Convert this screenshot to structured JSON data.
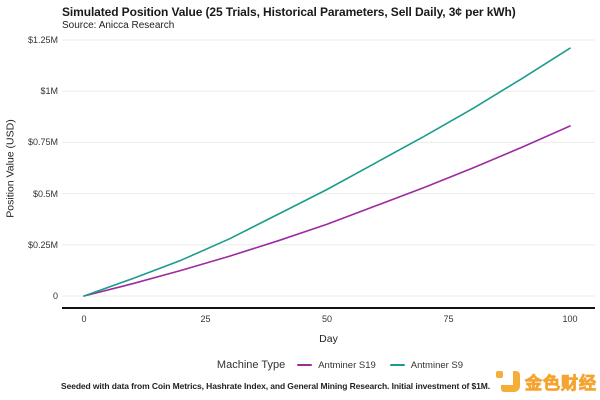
{
  "title": "Simulated Position Value (25 Trials, Historical Parameters, Sell Daily, 3¢ per kWh)",
  "subtitle": "Source: Anicca Research",
  "chart_data": {
    "type": "line",
    "title": "Simulated Position Value (25 Trials, Historical Parameters, Sell Daily, 3¢ per kWh)",
    "subtitle": "Source: Anicca Research",
    "xlabel": "Day",
    "ylabel": "Position Value (USD)",
    "xlim": [
      0,
      100
    ],
    "ylim": [
      0,
      1.25
    ],
    "grid": "horizontal-only",
    "legend_position": "bottom",
    "xticks": [
      0,
      25,
      50,
      75,
      100
    ],
    "yticks": [
      {
        "value": 0,
        "label": "0"
      },
      {
        "value": 0.25,
        "label": "$0.25M"
      },
      {
        "value": 0.5,
        "label": "$0.5M"
      },
      {
        "value": 0.75,
        "label": "$0.75M"
      },
      {
        "value": 1.0,
        "label": "$1M"
      },
      {
        "value": 1.25,
        "label": "$1.25M"
      }
    ],
    "x": [
      0,
      10,
      20,
      30,
      40,
      50,
      60,
      70,
      80,
      90,
      100
    ],
    "series": [
      {
        "name": "Antminer S19",
        "color": "#9C2BA0",
        "units": "USD millions",
        "values": [
          0,
          0.06,
          0.125,
          0.195,
          0.27,
          0.35,
          0.44,
          0.53,
          0.625,
          0.725,
          0.83
        ]
      },
      {
        "name": "Antminer S9",
        "color": "#1C9C8C",
        "units": "USD millions",
        "values": [
          0,
          0.085,
          0.175,
          0.28,
          0.4,
          0.52,
          0.65,
          0.78,
          0.915,
          1.06,
          1.21
        ]
      }
    ]
  },
  "legend": {
    "title": "Machine Type",
    "items": [
      {
        "label": "Antminer S19",
        "color": "#9C2BA0"
      },
      {
        "label": "Antminer S9",
        "color": "#1C9C8C"
      }
    ]
  },
  "footnote": "Seeded with data from Coin Metrics, Hashrate Index, and General Mining Research. Initial investment of $1M.",
  "watermark": {
    "text": "金色财经",
    "color": "#F6A623"
  },
  "style_colors": {
    "gridline": "#ECECEC",
    "axis_line": "#111111",
    "text": "#222222"
  }
}
